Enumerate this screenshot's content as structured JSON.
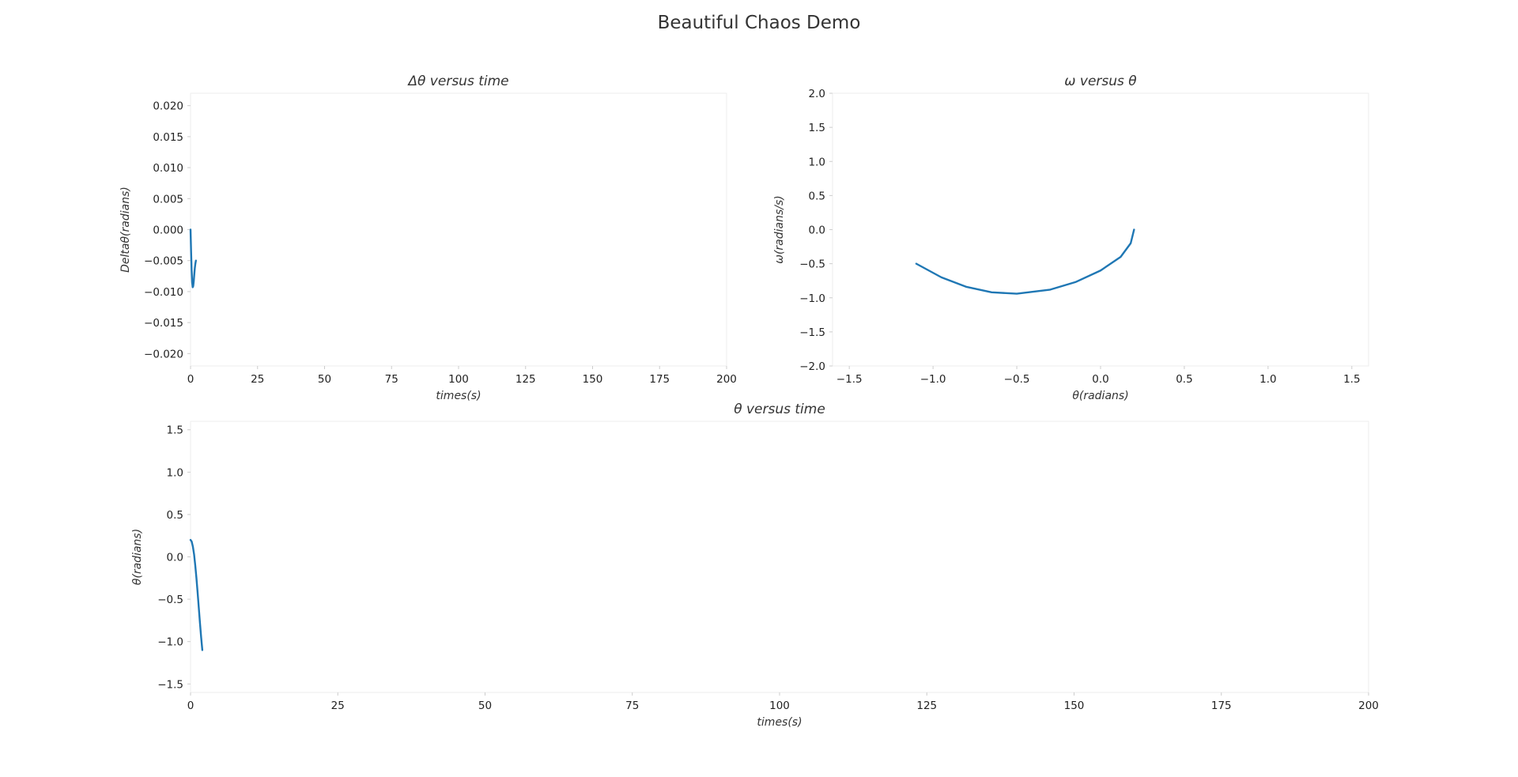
{
  "figure": {
    "title": "Beautiful Chaos Demo"
  },
  "chart_data": [
    {
      "type": "line",
      "title": "Δθ versus time",
      "xlabel": "times(s)",
      "ylabel": "Deltaθ(radians)",
      "xlim": [
        0,
        200
      ],
      "ylim": [
        -0.022,
        0.022
      ],
      "xticks": [
        0,
        25,
        50,
        75,
        100,
        125,
        150,
        175,
        200
      ],
      "xtick_labels": [
        "0",
        "25",
        "50",
        "75",
        "100",
        "125",
        "150",
        "175",
        "200"
      ],
      "yticks": [
        -0.02,
        -0.015,
        -0.01,
        -0.005,
        0.0,
        0.005,
        0.01,
        0.015,
        0.02
      ],
      "ytick_labels": [
        "−0.020",
        "−0.015",
        "−0.010",
        "−0.005",
        "0.000",
        "0.005",
        "0.010",
        "0.015",
        "0.020"
      ],
      "series": [
        {
          "x": [
            0,
            0.2,
            0.4,
            0.6,
            0.8,
            1.0,
            1.2,
            1.4,
            1.6,
            1.8,
            2.0
          ],
          "y": [
            0.0,
            -0.0035,
            -0.0065,
            -0.0085,
            -0.0093,
            -0.0091,
            -0.0083,
            -0.0072,
            -0.0062,
            -0.0055,
            -0.005
          ]
        }
      ],
      "grid": false,
      "color": "#1f77b4"
    },
    {
      "type": "line",
      "title": "ω versus θ",
      "xlabel": "θ(radians)",
      "ylabel": "ω(radians/s)",
      "xlim": [
        -1.6,
        1.6
      ],
      "ylim": [
        -2.0,
        2.0
      ],
      "xticks": [
        -1.5,
        -1.0,
        -0.5,
        0.0,
        0.5,
        1.0,
        1.5
      ],
      "xtick_labels": [
        "−1.5",
        "−1.0",
        "−0.5",
        "0.0",
        "0.5",
        "1.0",
        "1.5"
      ],
      "yticks": [
        -2.0,
        -1.5,
        -1.0,
        -0.5,
        0.0,
        0.5,
        1.0,
        1.5,
        2.0
      ],
      "ytick_labels": [
        "−2.0",
        "−1.5",
        "−1.0",
        "−0.5",
        "0.0",
        "0.5",
        "1.0",
        "1.5",
        "2.0"
      ],
      "series": [
        {
          "x": [
            0.2,
            0.18,
            0.12,
            0.0,
            -0.15,
            -0.3,
            -0.5,
            -0.65,
            -0.8,
            -0.95,
            -1.1
          ],
          "y": [
            0.0,
            -0.2,
            -0.4,
            -0.6,
            -0.77,
            -0.88,
            -0.94,
            -0.92,
            -0.84,
            -0.7,
            -0.5
          ]
        }
      ],
      "grid": false,
      "color": "#1f77b4"
    },
    {
      "type": "line",
      "title": "θ versus time",
      "xlabel": "times(s)",
      "ylabel": "θ(radians)",
      "xlim": [
        0,
        200
      ],
      "ylim": [
        -1.6,
        1.6
      ],
      "xticks": [
        0,
        25,
        50,
        75,
        100,
        125,
        150,
        175,
        200
      ],
      "xtick_labels": [
        "0",
        "25",
        "50",
        "75",
        "100",
        "125",
        "150",
        "175",
        "200"
      ],
      "yticks": [
        -1.5,
        -1.0,
        -0.5,
        0.0,
        0.5,
        1.0,
        1.5
      ],
      "ytick_labels": [
        "−1.5",
        "−1.0",
        "−0.5",
        "0.0",
        "0.5",
        "1.0",
        "1.5"
      ],
      "series": [
        {
          "x": [
            0,
            0.2,
            0.4,
            0.6,
            0.8,
            1.0,
            1.2,
            1.4,
            1.6,
            1.8,
            2.0
          ],
          "y": [
            0.2,
            0.18,
            0.12,
            0.03,
            -0.1,
            -0.25,
            -0.42,
            -0.6,
            -0.78,
            -0.95,
            -1.1
          ]
        }
      ],
      "grid": false,
      "color": "#1f77b4"
    }
  ]
}
